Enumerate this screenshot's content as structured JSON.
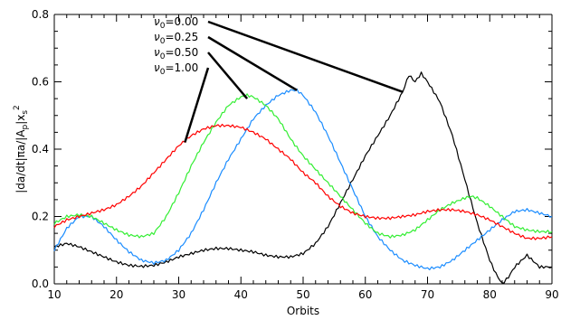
{
  "chart_data": {
    "type": "line",
    "xlabel": "Orbits",
    "ylabel": "|da/dt|πa/|A_p|x_s^2",
    "ylabel_parts": {
      "main": "|da/dt|πa/|A",
      "sub1": "p",
      "mid": "|x",
      "sub2": "s",
      "sup": "2"
    },
    "xlim": [
      10,
      90
    ],
    "ylim": [
      0,
      0.8
    ],
    "xticks": [
      "10",
      "20",
      "30",
      "40",
      "50",
      "60",
      "70",
      "80",
      "90"
    ],
    "yticks": [
      "0.0",
      "0.2",
      "0.4",
      "0.6",
      "0.8"
    ],
    "grid": false,
    "annotations": [
      {
        "symbol": "ν",
        "sub": "0",
        "value": "=0.00",
        "color": "#000000",
        "target": [
          66,
          0.57
        ]
      },
      {
        "symbol": "ν",
        "sub": "0",
        "value": "=0.25",
        "color": "#1a8cff",
        "target": [
          49,
          0.575
        ]
      },
      {
        "symbol": "ν",
        "sub": "0",
        "value": "=0.50",
        "color": "#33ee33",
        "target": [
          41,
          0.55
        ]
      },
      {
        "symbol": "ν",
        "sub": "0",
        "value": "=1.00",
        "color": "#ff0000",
        "target": [
          31,
          0.42
        ]
      }
    ],
    "series": [
      {
        "color": "#000000",
        "x": [
          10,
          12,
          14,
          16,
          18,
          20,
          22,
          24,
          26,
          28,
          30,
          32,
          34,
          36,
          38,
          40,
          42,
          44,
          46,
          48,
          50,
          52,
          54,
          56,
          58,
          60,
          62,
          64,
          66,
          67,
          68,
          69,
          70,
          72,
          74,
          76,
          78,
          80,
          81,
          82,
          83,
          84,
          86,
          88,
          90
        ],
        "y": [
          0.11,
          0.12,
          0.11,
          0.095,
          0.08,
          0.065,
          0.055,
          0.052,
          0.055,
          0.065,
          0.08,
          0.09,
          0.1,
          0.105,
          0.105,
          0.1,
          0.095,
          0.085,
          0.08,
          0.08,
          0.09,
          0.12,
          0.17,
          0.24,
          0.31,
          0.38,
          0.44,
          0.5,
          0.57,
          0.62,
          0.6,
          0.625,
          0.6,
          0.54,
          0.44,
          0.31,
          0.18,
          0.07,
          0.03,
          0.0,
          0.02,
          0.05,
          0.085,
          0.05,
          0.05
        ]
      },
      {
        "color": "#1a8cff",
        "x": [
          10,
          12,
          14,
          16,
          18,
          20,
          22,
          24,
          26,
          28,
          30,
          32,
          34,
          36,
          38,
          40,
          42,
          44,
          46,
          48,
          49,
          50,
          52,
          54,
          56,
          58,
          60,
          62,
          64,
          66,
          68,
          70,
          72,
          74,
          76,
          78,
          80,
          82,
          84,
          86,
          88,
          90
        ],
        "y": [
          0.1,
          0.165,
          0.2,
          0.2,
          0.17,
          0.13,
          0.095,
          0.07,
          0.062,
          0.07,
          0.1,
          0.15,
          0.22,
          0.3,
          0.37,
          0.43,
          0.49,
          0.53,
          0.56,
          0.575,
          0.575,
          0.56,
          0.51,
          0.44,
          0.36,
          0.28,
          0.2,
          0.14,
          0.1,
          0.07,
          0.055,
          0.045,
          0.05,
          0.07,
          0.1,
          0.13,
          0.16,
          0.19,
          0.215,
          0.22,
          0.21,
          0.2
        ]
      },
      {
        "color": "#33ee33",
        "x": [
          10,
          12,
          14,
          16,
          18,
          20,
          22,
          24,
          26,
          28,
          30,
          32,
          34,
          36,
          38,
          40,
          41,
          42,
          44,
          46,
          48,
          50,
          52,
          54,
          56,
          58,
          60,
          62,
          64,
          66,
          68,
          70,
          72,
          74,
          76,
          77,
          78,
          80,
          82,
          84,
          86,
          88,
          90
        ],
        "y": [
          0.18,
          0.2,
          0.205,
          0.2,
          0.18,
          0.16,
          0.145,
          0.14,
          0.15,
          0.2,
          0.27,
          0.35,
          0.42,
          0.48,
          0.53,
          0.555,
          0.56,
          0.555,
          0.53,
          0.49,
          0.43,
          0.38,
          0.34,
          0.3,
          0.26,
          0.22,
          0.18,
          0.15,
          0.14,
          0.145,
          0.16,
          0.19,
          0.22,
          0.24,
          0.255,
          0.26,
          0.255,
          0.23,
          0.2,
          0.17,
          0.16,
          0.155,
          0.155
        ]
      },
      {
        "color": "#ff0000",
        "x": [
          10,
          12,
          14,
          16,
          18,
          20,
          22,
          24,
          26,
          28,
          30,
          32,
          34,
          36,
          38,
          40,
          42,
          44,
          46,
          48,
          50,
          52,
          54,
          56,
          58,
          60,
          62,
          64,
          66,
          68,
          70,
          72,
          74,
          76,
          78,
          80,
          82,
          84,
          86,
          88,
          90
        ],
        "y": [
          0.17,
          0.19,
          0.2,
          0.21,
          0.22,
          0.235,
          0.26,
          0.29,
          0.33,
          0.37,
          0.41,
          0.44,
          0.46,
          0.47,
          0.47,
          0.465,
          0.45,
          0.43,
          0.4,
          0.37,
          0.33,
          0.3,
          0.26,
          0.23,
          0.21,
          0.2,
          0.195,
          0.195,
          0.2,
          0.205,
          0.215,
          0.22,
          0.22,
          0.215,
          0.205,
          0.19,
          0.17,
          0.15,
          0.135,
          0.135,
          0.14
        ]
      }
    ]
  }
}
